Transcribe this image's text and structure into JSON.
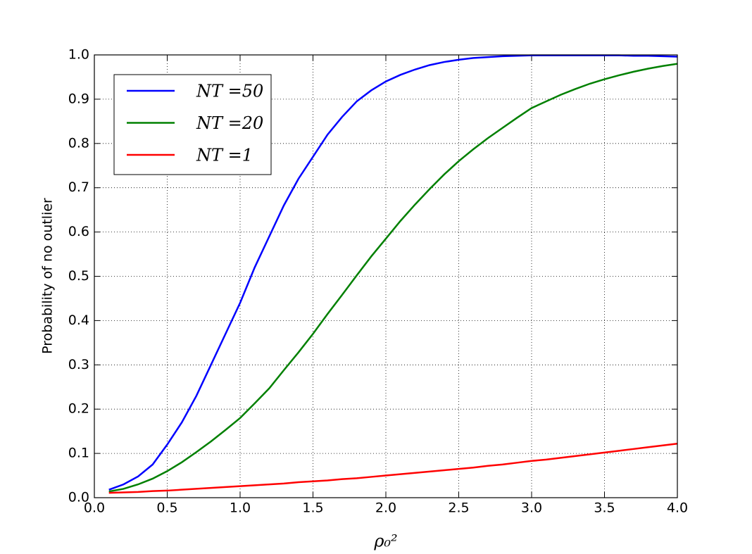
{
  "chart_data": {
    "type": "line",
    "xlabel": "ρ₀²",
    "ylabel": "Probability of no outlier",
    "x": [
      0.1,
      0.2,
      0.3,
      0.4,
      0.5,
      0.6,
      0.7,
      0.8,
      0.9,
      1.0,
      1.1,
      1.2,
      1.3,
      1.4,
      1.5,
      1.6,
      1.7,
      1.8,
      1.9,
      2.0,
      2.1,
      2.2,
      2.3,
      2.4,
      2.5,
      2.6,
      2.7,
      2.8,
      2.9,
      3.0,
      3.1,
      3.2,
      3.3,
      3.4,
      3.5,
      3.6,
      3.7,
      3.8,
      3.9,
      4.0
    ],
    "series": [
      {
        "name": "NT =50",
        "color": "#0000ff",
        "values": [
          0.018,
          0.03,
          0.048,
          0.075,
          0.12,
          0.17,
          0.23,
          0.3,
          0.37,
          0.44,
          0.52,
          0.59,
          0.66,
          0.72,
          0.77,
          0.82,
          0.86,
          0.895,
          0.92,
          0.94,
          0.955,
          0.967,
          0.977,
          0.984,
          0.989,
          0.993,
          0.995,
          0.997,
          0.998,
          0.999,
          0.999,
          0.999,
          0.999,
          0.999,
          0.999,
          0.999,
          0.998,
          0.998,
          0.997,
          0.996
        ]
      },
      {
        "name": "NT =20",
        "color": "#008000",
        "values": [
          0.014,
          0.02,
          0.03,
          0.043,
          0.06,
          0.08,
          0.103,
          0.127,
          0.153,
          0.18,
          0.213,
          0.247,
          0.288,
          0.328,
          0.37,
          0.415,
          0.458,
          0.502,
          0.545,
          0.585,
          0.625,
          0.662,
          0.697,
          0.73,
          0.76,
          0.787,
          0.812,
          0.835,
          0.858,
          0.88,
          0.895,
          0.91,
          0.923,
          0.935,
          0.945,
          0.954,
          0.962,
          0.969,
          0.975,
          0.98
        ]
      },
      {
        "name": "NT =1",
        "color": "#ff0000",
        "values": [
          0.011,
          0.012,
          0.013,
          0.015,
          0.016,
          0.018,
          0.02,
          0.022,
          0.024,
          0.026,
          0.028,
          0.03,
          0.032,
          0.035,
          0.037,
          0.039,
          0.042,
          0.044,
          0.047,
          0.05,
          0.053,
          0.056,
          0.059,
          0.062,
          0.065,
          0.068,
          0.072,
          0.075,
          0.079,
          0.083,
          0.086,
          0.09,
          0.094,
          0.098,
          0.102,
          0.106,
          0.11,
          0.114,
          0.118,
          0.122
        ]
      }
    ],
    "xlim": [
      0,
      4
    ],
    "xticks": [
      {
        "value": 0,
        "label": "0.0"
      },
      0.5,
      {
        "value": 1,
        "label": "1.0"
      },
      1.5,
      {
        "value": 2,
        "label": "2.0"
      },
      2.5,
      {
        "value": 3,
        "label": "3.0"
      },
      3.5,
      {
        "value": 4,
        "label": "4.0"
      }
    ],
    "ylim": [
      0,
      1
    ],
    "yticks": [
      {
        "value": 0,
        "label": "0.0"
      },
      0.1,
      0.2,
      0.3,
      0.4,
      0.5,
      0.6,
      0.7,
      0.8,
      0.9,
      {
        "value": 1,
        "label": "1.0"
      }
    ],
    "grid": true,
    "legend": "upper-left"
  }
}
